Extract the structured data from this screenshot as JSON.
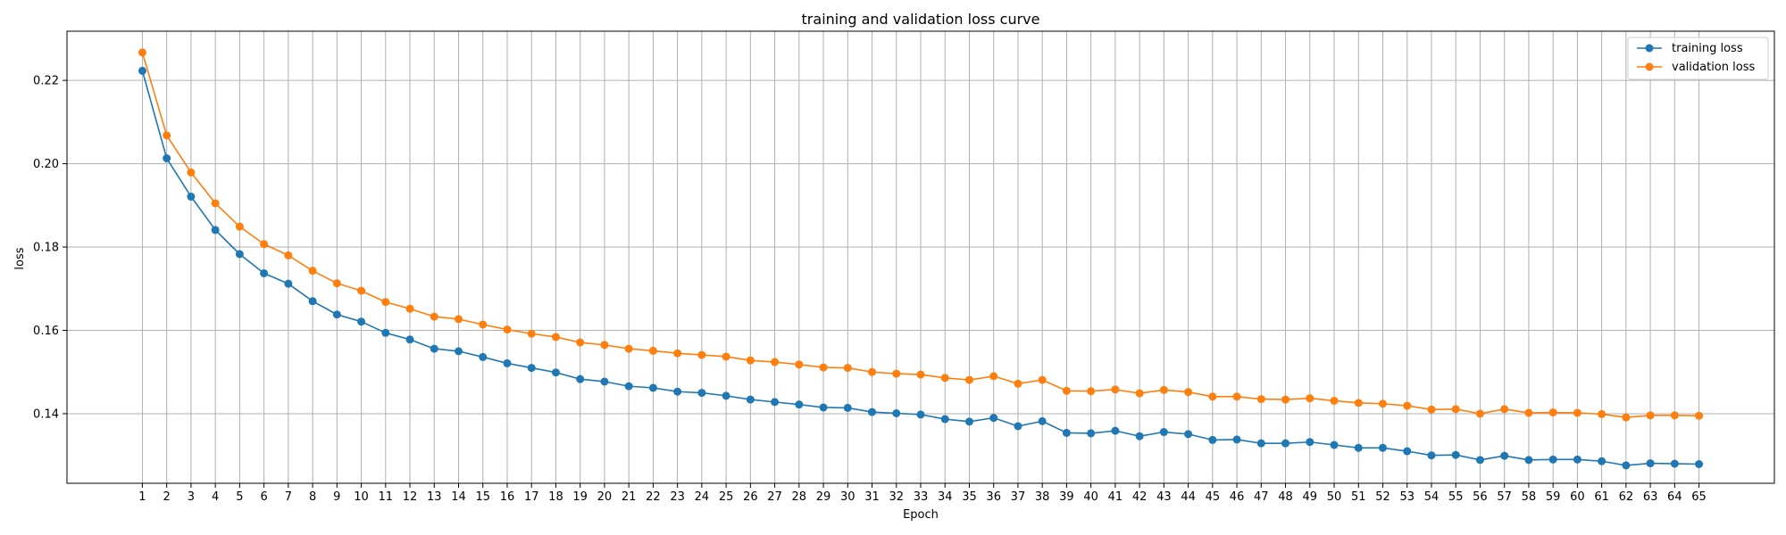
{
  "chart_data": {
    "type": "line",
    "title": "training and validation loss curve",
    "xlabel": "Epoch",
    "ylabel": "loss",
    "x": [
      1,
      2,
      3,
      4,
      5,
      6,
      7,
      8,
      9,
      10,
      11,
      12,
      13,
      14,
      15,
      16,
      17,
      18,
      19,
      20,
      21,
      22,
      23,
      24,
      25,
      26,
      27,
      28,
      29,
      30,
      31,
      32,
      33,
      34,
      35,
      36,
      37,
      38,
      39,
      40,
      41,
      42,
      43,
      44,
      45,
      46,
      47,
      48,
      49,
      50,
      51,
      52,
      53,
      54,
      55,
      56,
      57,
      58,
      59,
      60,
      61,
      62,
      63,
      64,
      65
    ],
    "xlim": [
      -2.1,
      68.1
    ],
    "ylim": [
      0.1233,
      0.2318
    ],
    "yticks": [
      0.14,
      0.16,
      0.18,
      0.2,
      0.22
    ],
    "ytick_labels": [
      "0.14",
      "0.16",
      "0.18",
      "0.20",
      "0.22"
    ],
    "grid": true,
    "legend_position": "top-right",
    "series": [
      {
        "name": "training loss",
        "color": "#1f77b4",
        "values": [
          0.2223,
          0.2013,
          0.1921,
          0.1841,
          0.1783,
          0.1737,
          0.1712,
          0.167,
          0.1638,
          0.1621,
          0.1594,
          0.1578,
          0.1556,
          0.155,
          0.1536,
          0.1521,
          0.151,
          0.1499,
          0.1483,
          0.1477,
          0.1466,
          0.1462,
          0.1453,
          0.145,
          0.1443,
          0.1434,
          0.1428,
          0.1422,
          0.1415,
          0.1414,
          0.1404,
          0.1401,
          0.1398,
          0.1387,
          0.1381,
          0.139,
          0.137,
          0.1382,
          0.1354,
          0.1353,
          0.1359,
          0.1346,
          0.1356,
          0.1351,
          0.1337,
          0.1338,
          0.1329,
          0.1329,
          0.1332,
          0.1325,
          0.1318,
          0.1318,
          0.131,
          0.13,
          0.1301,
          0.1289,
          0.1299,
          0.1289,
          0.129,
          0.129,
          0.1286,
          0.1276,
          0.1281,
          0.128,
          0.1279
        ]
      },
      {
        "name": "validation loss",
        "color": "#ff7f0e",
        "values": [
          0.2267,
          0.2068,
          0.1979,
          0.1905,
          0.1849,
          0.1807,
          0.178,
          0.1743,
          0.1713,
          0.1695,
          0.1668,
          0.1652,
          0.1633,
          0.1627,
          0.1614,
          0.1602,
          0.1592,
          0.1584,
          0.1571,
          0.1565,
          0.1556,
          0.1551,
          0.1545,
          0.1541,
          0.1537,
          0.1528,
          0.1524,
          0.1518,
          0.1511,
          0.151,
          0.15,
          0.1496,
          0.1494,
          0.1486,
          0.1481,
          0.149,
          0.1472,
          0.1481,
          0.1455,
          0.1454,
          0.1458,
          0.1449,
          0.1457,
          0.1452,
          0.1441,
          0.1441,
          0.1435,
          0.1434,
          0.1437,
          0.1431,
          0.1426,
          0.1424,
          0.1419,
          0.141,
          0.1411,
          0.14,
          0.1411,
          0.1402,
          0.1403,
          0.1402,
          0.1399,
          0.1391,
          0.1396,
          0.1396,
          0.1395
        ]
      }
    ]
  }
}
